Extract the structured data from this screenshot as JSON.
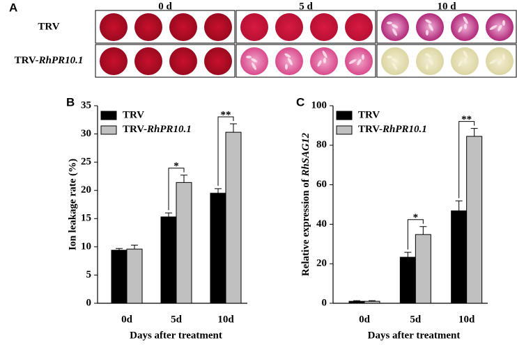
{
  "panel_a": {
    "label": "A",
    "columns": [
      "0 d",
      "5 d",
      "10 d"
    ],
    "rows": [
      "TRV",
      "TRV-RhPR10.1"
    ]
  },
  "chart_data": [
    {
      "type": "bar",
      "panel_label": "B",
      "ylabel": "Ion leakage rate (%)",
      "xlabel": "Days after treatment",
      "categories": [
        "0d",
        "5d",
        "10d"
      ],
      "series": [
        {
          "name": "TRV",
          "color": "#000000",
          "values": [
            9.4,
            15.3,
            19.5
          ],
          "errors": [
            0.3,
            0.7,
            0.8
          ]
        },
        {
          "name": "TRV-RhPR10.1",
          "color": "#c0c0c0",
          "values": [
            9.6,
            21.4,
            30.3
          ],
          "errors": [
            0.7,
            1.3,
            1.5
          ]
        }
      ],
      "significance": [
        null,
        "*",
        "**"
      ],
      "ylim": [
        0,
        35
      ],
      "yticks": [
        0,
        5,
        10,
        15,
        20,
        25,
        30,
        35
      ],
      "legend": "upper-left"
    },
    {
      "type": "bar",
      "panel_label": "C",
      "ylabel": "Relative expression of RhSAG12",
      "xlabel": "Days after treatment",
      "categories": [
        "0d",
        "5d",
        "10d"
      ],
      "series": [
        {
          "name": "TRV",
          "color": "#000000",
          "values": [
            1,
            23.3,
            46.8
          ],
          "errors": [
            0.3,
            2.5,
            5
          ]
        },
        {
          "name": "TRV-RhPR10.1",
          "color": "#c0c0c0",
          "values": [
            1,
            34.8,
            84.5
          ],
          "errors": [
            0.3,
            4,
            4
          ]
        }
      ],
      "significance": [
        null,
        "*",
        "**"
      ],
      "ylim": [
        0,
        100
      ],
      "yticks": [
        0,
        20,
        40,
        60,
        80,
        100
      ],
      "legend": "upper-left"
    }
  ]
}
